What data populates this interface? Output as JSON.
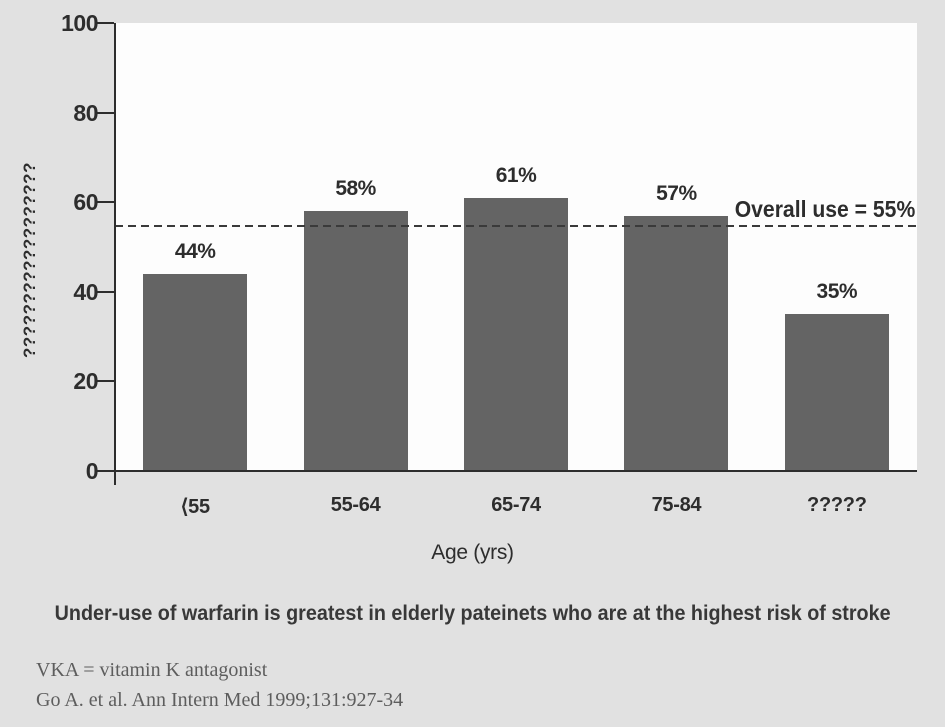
{
  "colors": {
    "page_background": "#e1e1e1",
    "plot_background": "#fdfdfd",
    "bar": "#646464",
    "axis": "#2d2d2d",
    "footnote_text": "#5d5d5d"
  },
  "chart_data": {
    "type": "bar",
    "categories": [
      "⟨55",
      "55-64",
      "65-74",
      "75-84",
      "?????"
    ],
    "values": [
      44,
      58,
      61,
      57,
      35
    ],
    "bar_labels": [
      "44%",
      "58%",
      "61%",
      "57%",
      "35%"
    ],
    "xlabel": "Age (yrs)",
    "ylabel": "??????????????????",
    "yticks": [
      0,
      20,
      40,
      60,
      80,
      100
    ],
    "ylim": [
      0,
      100
    ],
    "grid": false,
    "legend": "none",
    "reference_line": {
      "value": 55,
      "style": "dashed",
      "label": "Overall use = 55%"
    }
  },
  "caption": "Under-use of warfarin is greatest in elderly pateinets who are at the highest risk of stroke",
  "footnotes": [
    "VKA = vitamin K antagonist",
    "Go A. et al. Ann Intern Med 1999;131:927-34"
  ]
}
